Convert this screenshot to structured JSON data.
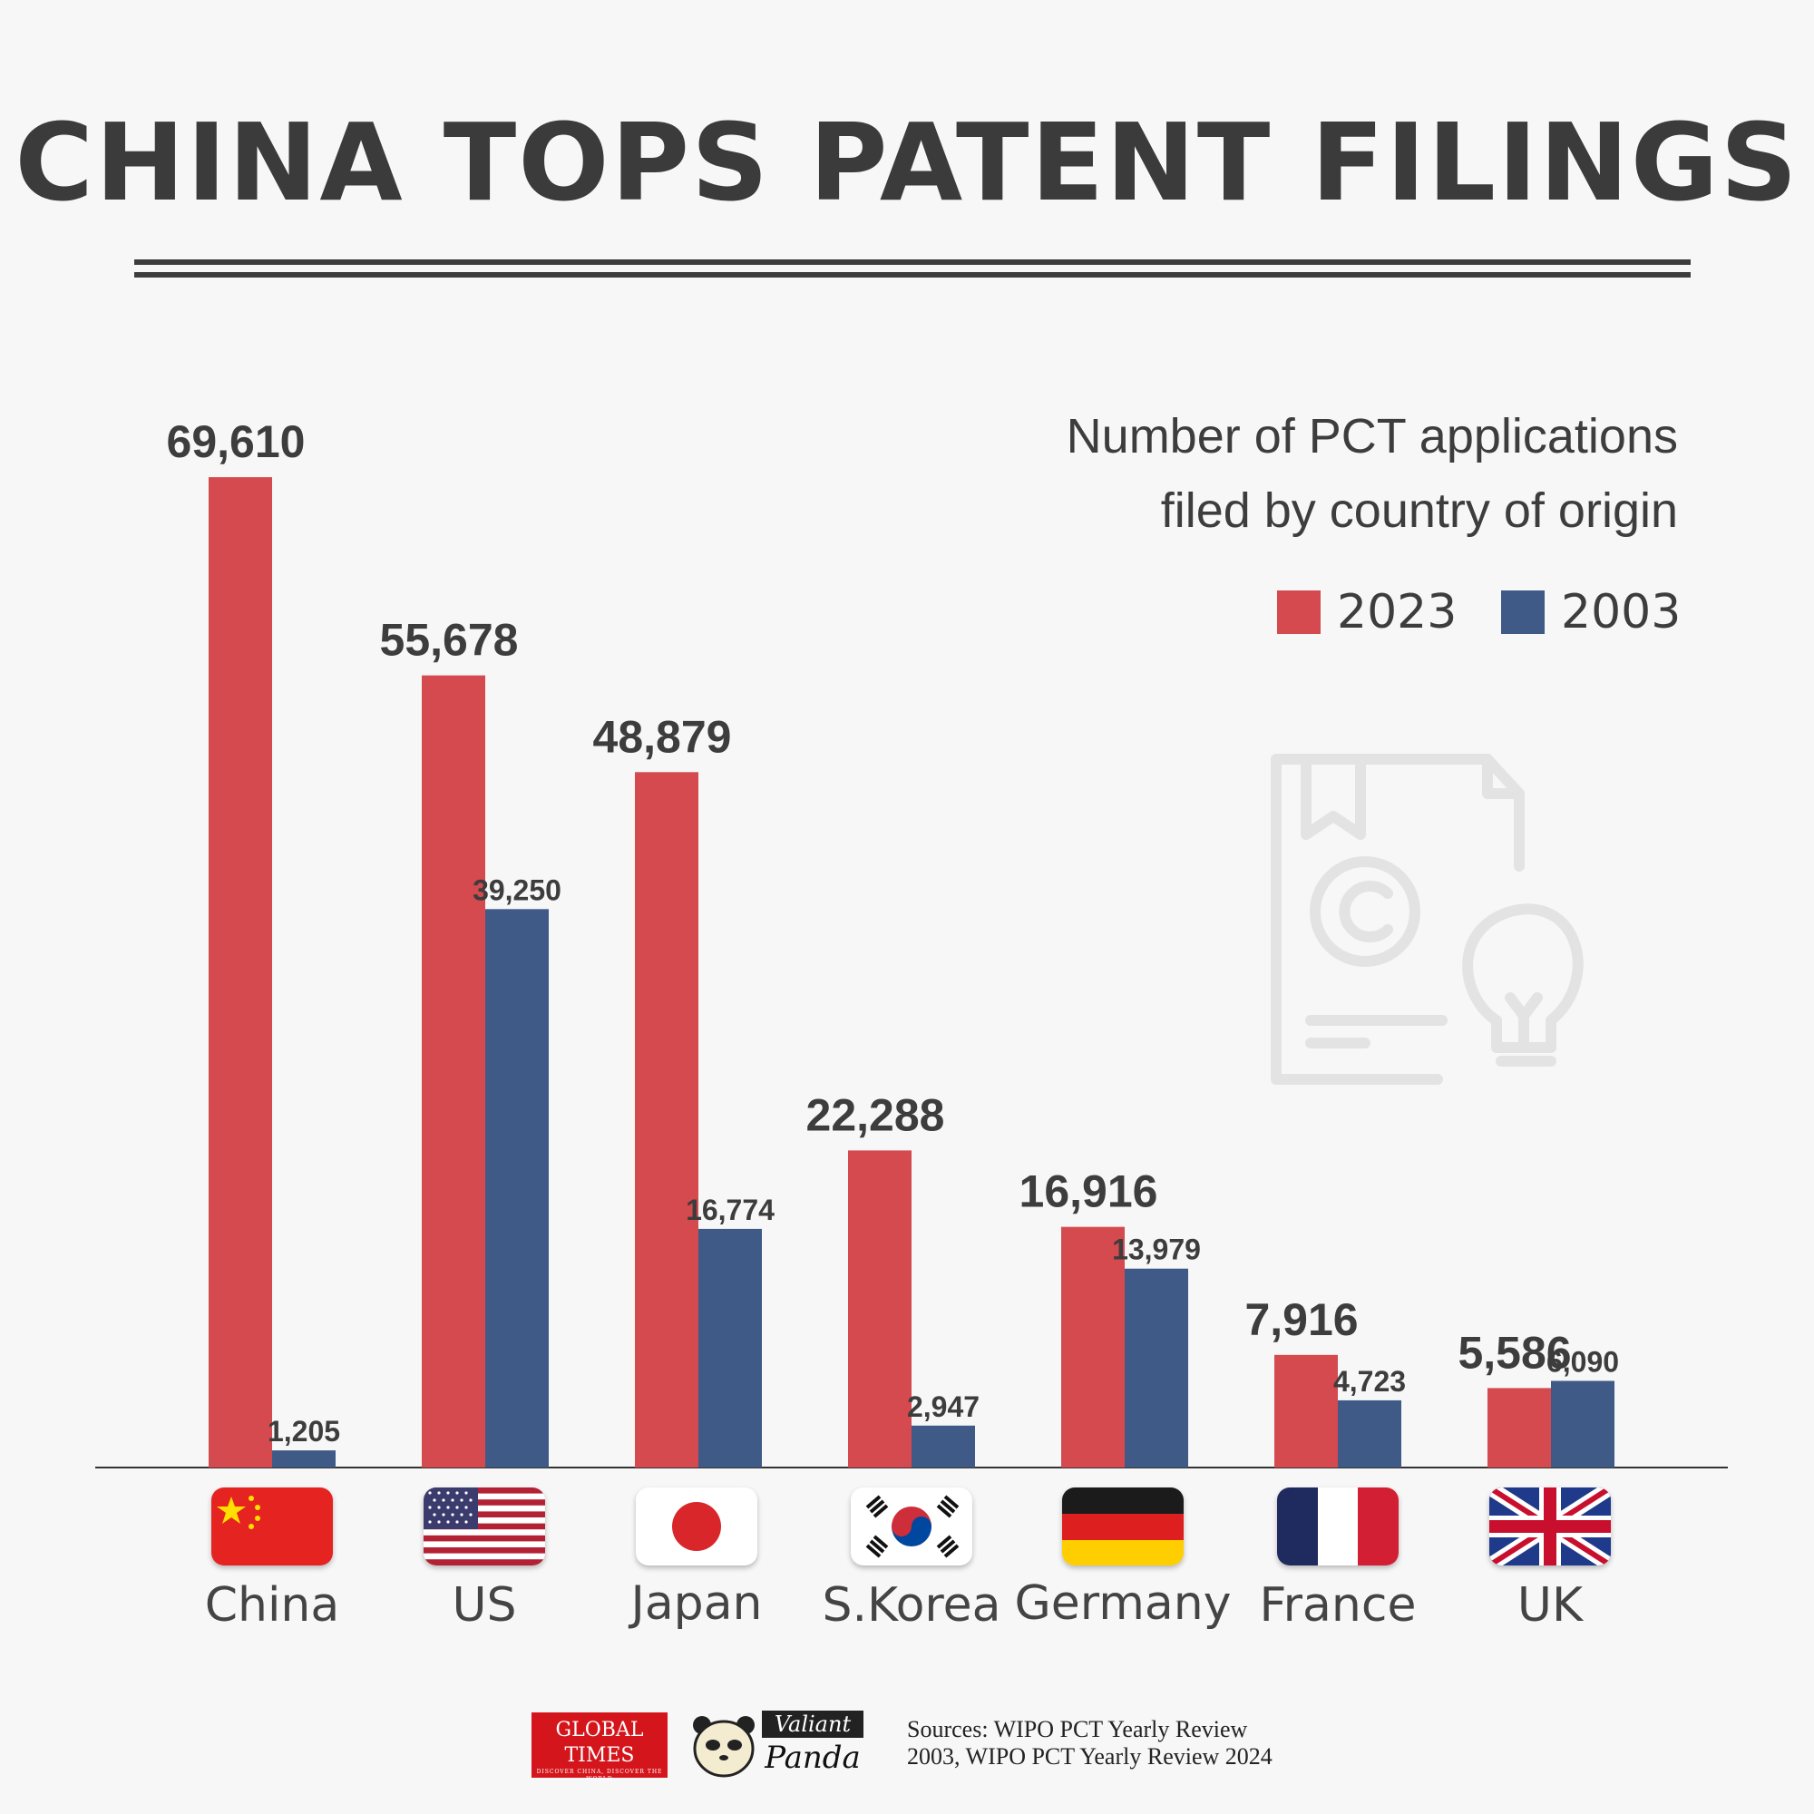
{
  "title": "CHINA TOPS PATENT FILINGS",
  "chart_data": {
    "type": "bar",
    "title": "Number of PCT applications filed by country of origin",
    "subtitle_lines": [
      "Number of PCT applications",
      "filed by country of origin"
    ],
    "categories": [
      "China",
      "US",
      "Japan",
      "S.Korea",
      "Germany",
      "France",
      "UK"
    ],
    "series": [
      {
        "name": "2023",
        "color": "#d44a4f",
        "values": [
          69610,
          55678,
          48879,
          22288,
          16916,
          7916,
          5586
        ],
        "labels": [
          "69,610",
          "55,678",
          "48,879",
          "22,288",
          "16,916",
          "7,916",
          "5,586"
        ]
      },
      {
        "name": "2003",
        "color": "#3f5a87",
        "values": [
          1205,
          39250,
          16774,
          2947,
          13979,
          4723,
          6090
        ],
        "labels": [
          "1,205",
          "39,250",
          "16,774",
          "2,947",
          "13,979",
          "4,723",
          "6,090"
        ]
      }
    ],
    "ylim": [
      0,
      70000
    ],
    "xlabel": "",
    "ylabel": "",
    "legend": "top-right"
  },
  "footer": {
    "logo1_line1": "GLOBAL",
    "logo1_line2": "TIMES",
    "logo1_tag": "DISCOVER CHINA, DISCOVER THE WORLD",
    "logo2_line1": "Valiant",
    "logo2_line2": "Panda",
    "sources_line1": "Sources: WIPO PCT Yearly Review",
    "sources_line2": "2003, WIPO PCT Yearly Review 2024"
  }
}
